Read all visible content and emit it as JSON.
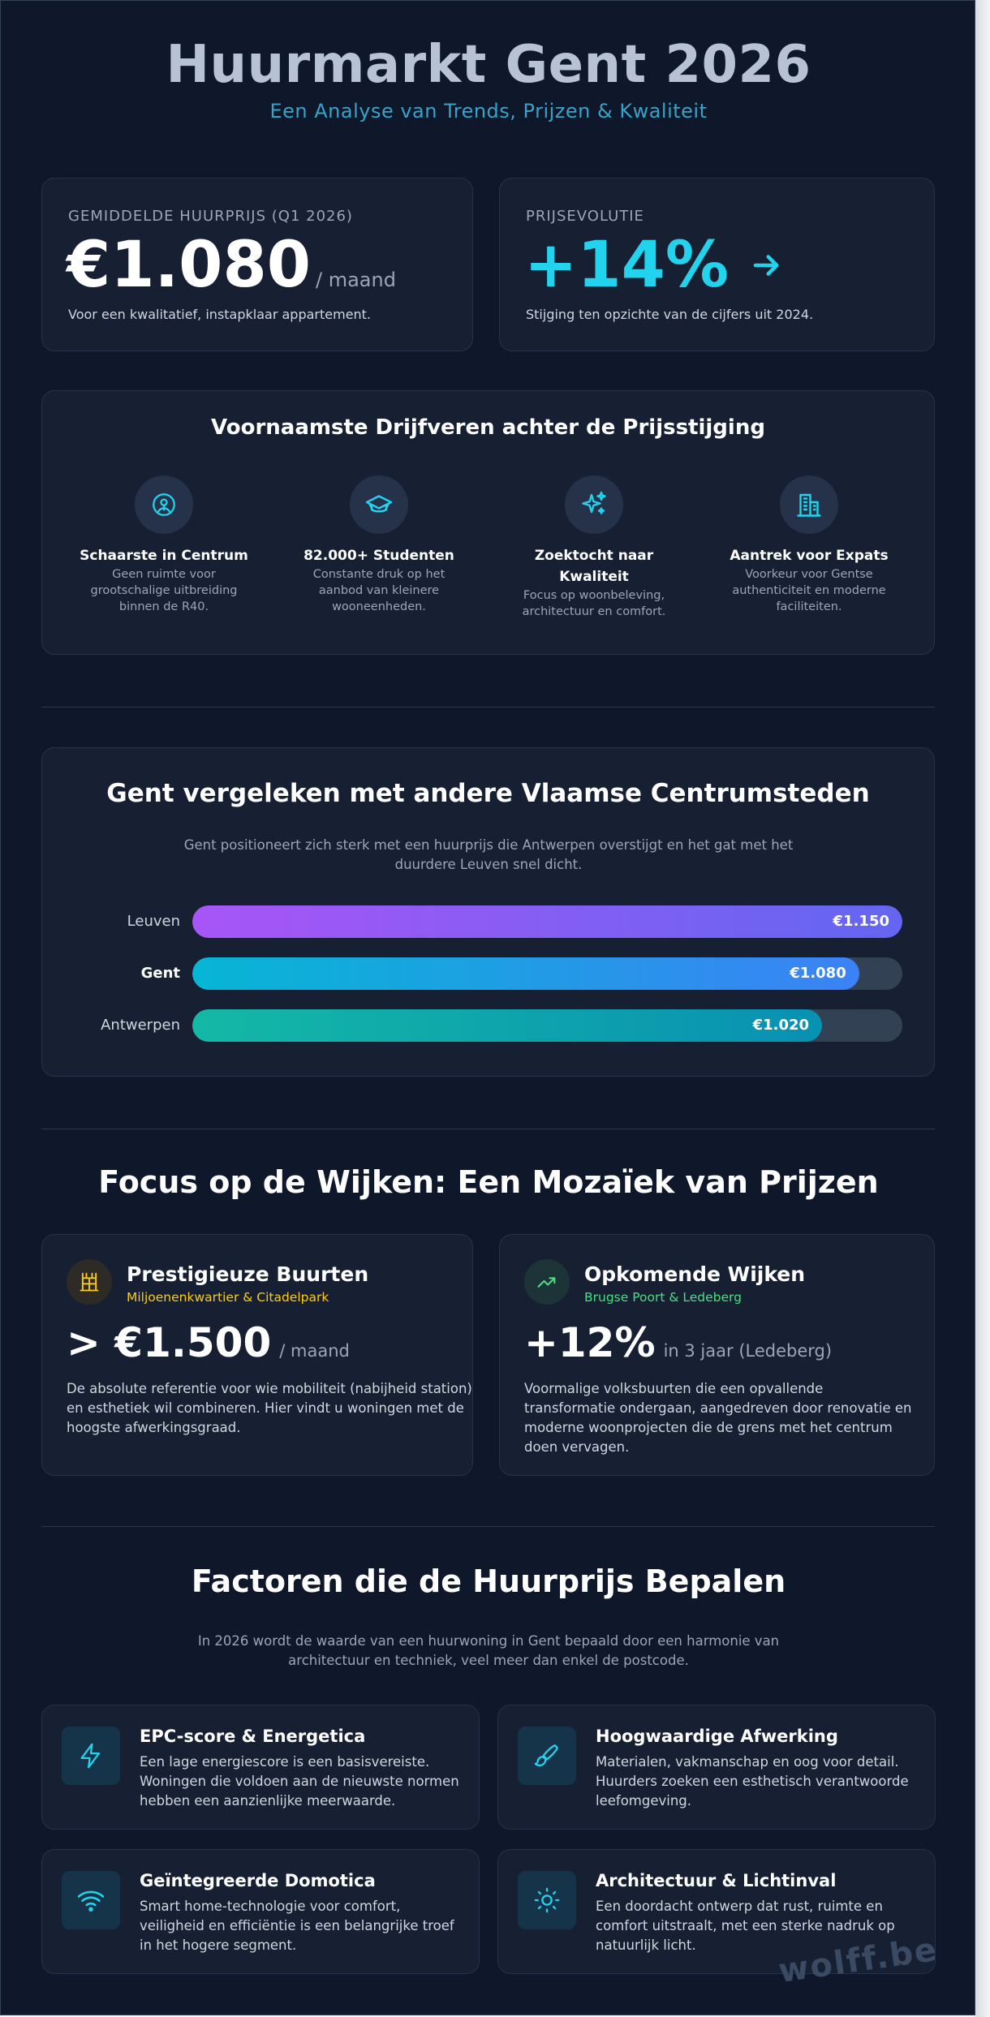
{
  "header": {
    "title": "Huurmarkt Gent 2026",
    "subtitle": "Een Analyse van Trends, Prijzen & Kwaliteit"
  },
  "stats": [
    {
      "label": "GEMIDDELDE HUURPRIJS (Q1 2026)",
      "value": "€1.080",
      "unit": "/ maand",
      "note": "Voor een kwalitatief, instapklaar appartement."
    },
    {
      "label": "PRIJSEVOLUTIE",
      "value": "+14%",
      "icon": "arrow-right-icon",
      "note": "Stijging ten opzichte van de cijfers uit 2024."
    }
  ],
  "drivers": {
    "title": "Voornaamste Drijfveren achter de Prijsstijging",
    "items": [
      {
        "icon": "map-pin-icon",
        "title": "Schaarste in Centrum",
        "text": "Geen ruimte voor grootschalige uitbreiding binnen de R40."
      },
      {
        "icon": "graduation-cap-icon",
        "title": "82.000+ Studenten",
        "text": "Constante druk op het aanbod van kleinere wooneenheden."
      },
      {
        "icon": "sparkles-icon",
        "title": "Zoektocht naar Kwaliteit",
        "text": "Focus op woonbeleving, architectuur en comfort."
      },
      {
        "icon": "building-icon",
        "title": "Aantrek voor Expats",
        "text": "Voorkeur voor Gentse authenticiteit en moderne faciliteiten."
      }
    ]
  },
  "compare": {
    "title": "Gent vergeleken met andere Vlaamse Centrumsteden",
    "intro": "Gent positioneert zich sterk met een huurprijs die Antwerpen overstijgt en het gat met het duurdere Leuven snel dicht.",
    "bars": [
      {
        "city": "Leuven",
        "value": 1150,
        "label": "€1.150",
        "color_from": "#a855f7",
        "color_to": "#6366f1"
      },
      {
        "city": "Gent",
        "value": 1080,
        "label": "€1.080",
        "color_from": "#06b6d4",
        "color_to": "#3b82f6"
      },
      {
        "city": "Antwerpen",
        "value": 1020,
        "label": "€1.020",
        "color_from": "#14b8a6",
        "color_to": "#0891b2"
      }
    ],
    "max": 1150
  },
  "wijken": {
    "title": "Focus op de Wijken: Een Mozaïek van Prijzen",
    "cards": [
      {
        "icon": "castle-icon",
        "title": "Prestigieuze Buurten",
        "sub": "Miljoenenkwartier & Citadelpark",
        "big": "> €1.500",
        "unit": "/ maand",
        "text": "De absolute referentie voor wie mobiliteit (nabijheid station) en esthetiek wil combineren. Hier vindt u woningen met de hoogste afwerkingsgraad.",
        "accent": "#facc15"
      },
      {
        "icon": "trend-up-icon",
        "title": "Opkomende Wijken",
        "sub": "Brugse Poort & Ledeberg",
        "big": "+12%",
        "unit": "in 3 jaar (Ledeberg)",
        "text": "Voormalige volksbuurten die een opvallende transformatie ondergaan, aangedreven door renovatie en moderne woonprojecten die de grens met het centrum doen vervagen.",
        "accent": "#4ade80"
      }
    ]
  },
  "factors": {
    "title": "Factoren die de Huurprijs Bepalen",
    "intro": "In 2026 wordt de waarde van een huurwoning in Gent bepaald door een harmonie van architectuur en techniek, veel meer dan enkel de postcode.",
    "items": [
      {
        "icon": "lightning-icon",
        "title": "EPC-score & Energetica",
        "text": "Een lage energiescore is een basisvereiste. Woningen die voldoen aan de nieuwste normen hebben een aanzienlijke meerwaarde."
      },
      {
        "icon": "paint-brush-icon",
        "title": "Hoogwaardige Afwerking",
        "text": "Materialen, vakmanschap en oog voor detail. Huurders zoeken een esthetisch verantwoorde leefomgeving."
      },
      {
        "icon": "wifi-icon",
        "title": "Geïntegreerde Domotica",
        "text": "Smart home-technologie voor comfort, veiligheid en efficiëntie is een belangrijke troef in het hogere segment."
      },
      {
        "icon": "sun-icon",
        "title": "Architectuur & Lichtinval",
        "text": "Een doordacht ontwerp dat rust, ruimte en comfort uitstraalt, met een sterke nadruk op natuurlijk licht."
      }
    ]
  },
  "watermark": "wolff.be",
  "colors": {
    "background": "#0f172a",
    "card": "#172033",
    "accent": "#22d3ee"
  }
}
